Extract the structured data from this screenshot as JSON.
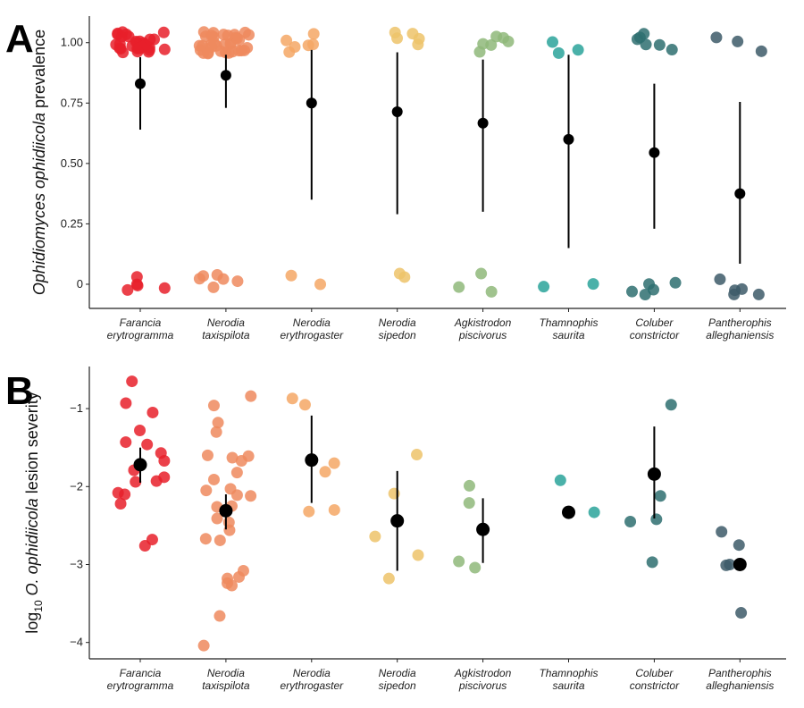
{
  "chart_data": [
    {
      "panel": "A",
      "type": "scatter",
      "ylabel_italic": "Ophidiomyces ophidiicola",
      "ylabel_rest": " prevalence",
      "ylim": [
        -0.1,
        1.11
      ],
      "yticks": [
        "0",
        "0.25",
        "0.50",
        "0.75",
        "1.00"
      ],
      "ytick_values": [
        0,
        0.25,
        0.5,
        0.75,
        1
      ],
      "categories": [
        [
          "Farancia",
          "erytrogramma"
        ],
        [
          "Nerodia",
          "taxispilota"
        ],
        [
          "Nerodia",
          "erythrogaster"
        ],
        [
          "Nerodia",
          "sipedon"
        ],
        [
          "Agkistrodon",
          "piscivorus"
        ],
        [
          "Thamnophis",
          "saurita"
        ],
        [
          "Coluber",
          "constrictor"
        ],
        [
          "Pantherophis",
          "alleghaniensis"
        ]
      ],
      "positive_counts": [
        30,
        34,
        6,
        5,
        6,
        3,
        6,
        3
      ],
      "negative_counts": [
        5,
        6,
        2,
        2,
        3,
        2,
        5,
        5
      ],
      "estimate": [
        0.83,
        0.865,
        0.75,
        0.714,
        0.667,
        0.6,
        0.545,
        0.375
      ],
      "ci_low": [
        0.64,
        0.73,
        0.35,
        0.29,
        0.3,
        0.15,
        0.23,
        0.085
      ],
      "ci_high": [
        0.94,
        0.95,
        0.97,
        0.96,
        0.93,
        0.95,
        0.83,
        0.755
      ]
    },
    {
      "panel": "B",
      "type": "scatter",
      "ylabel_pre": "log",
      "ylabel_sub": "10",
      "ylabel_italic": " O. ophidiicola",
      "ylabel_rest": " lesion severity",
      "ylim": [
        -4.21,
        -0.46
      ],
      "yticks": [
        "−4",
        "−3",
        "−2",
        "−1"
      ],
      "ytick_values": [
        -4,
        -3,
        -2,
        -1
      ],
      "categories": [
        [
          "Farancia",
          "erytrogramma"
        ],
        [
          "Nerodia",
          "taxispilota"
        ],
        [
          "Nerodia",
          "erythrogaster"
        ],
        [
          "Nerodia",
          "sipedon"
        ],
        [
          "Agkistrodon",
          "piscivorus"
        ],
        [
          "Thamnophis",
          "saurita"
        ],
        [
          "Coluber",
          "constrictor"
        ],
        [
          "Pantherophis",
          "alleghaniensis"
        ]
      ],
      "points": [
        [
          -0.65,
          -0.93,
          -1.05,
          -1.28,
          -1.43,
          -1.46,
          -1.57,
          -1.67,
          -1.79,
          -1.88,
          -1.93,
          -1.94,
          -2.08,
          -2.1,
          -2.22,
          -2.68,
          -2.76
        ],
        [
          -0.84,
          -0.96,
          -1.18,
          -1.3,
          -1.6,
          -1.61,
          -1.63,
          -1.67,
          -1.82,
          -1.91,
          -2.03,
          -2.05,
          -2.11,
          -2.12,
          -2.25,
          -2.26,
          -2.41,
          -2.46,
          -2.56,
          -2.67,
          -2.69,
          -3.08,
          -3.16,
          -3.18,
          -3.24,
          -3.27,
          -3.66,
          -4.04
        ],
        [
          -0.87,
          -0.95,
          -1.7,
          -1.81,
          -2.3,
          -2.32
        ],
        [
          -1.59,
          -2.09,
          -2.64,
          -2.88,
          -3.18
        ],
        [
          -1.99,
          -2.21,
          -2.96,
          -3.04
        ],
        [
          -1.92,
          -2.33
        ],
        [
          -0.95,
          -2.12,
          -2.42,
          -2.45,
          -2.97
        ],
        [
          -2.58,
          -2.75,
          -3.0,
          -3.01,
          -3.62
        ]
      ],
      "estimate": [
        -1.72,
        -2.31,
        -1.66,
        -2.44,
        -2.55,
        -2.33,
        -1.84,
        -3.0
      ],
      "ci_low": [
        -1.95,
        -2.55,
        -2.21,
        -3.08,
        -2.98,
        null,
        -2.41,
        null
      ],
      "ci_high": [
        -1.5,
        -2.1,
        -1.09,
        -1.8,
        -2.15,
        null,
        -1.23,
        null
      ]
    }
  ],
  "colors": [
    "#e8202a",
    "#ee8a5e",
    "#f4a765",
    "#edc36a",
    "#8fb87a",
    "#2aa39a",
    "#2e6e70",
    "#3d5a68"
  ],
  "labels": {
    "panel_a": "A",
    "panel_b": "B"
  }
}
